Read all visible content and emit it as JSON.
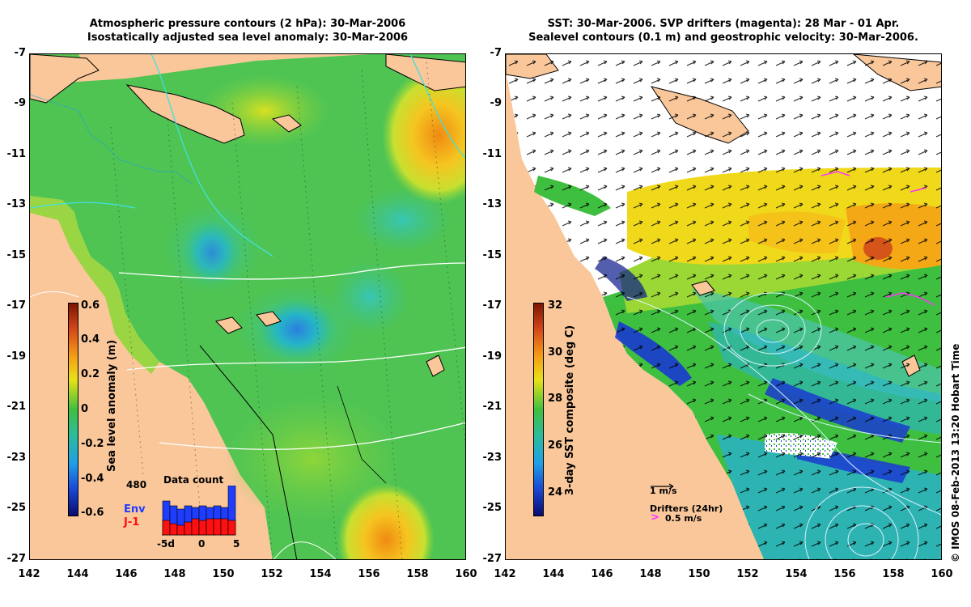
{
  "left_panel": {
    "title_line1": "Atmospheric pressure contours (2 hPa): 30-Mar-2006",
    "title_line2": "Isostatically adjusted sea level anomaly: 30-Mar-2006",
    "colorbar": {
      "label": "Sea level anomaly (m)",
      "ticks": [
        "0.6",
        "0.4",
        "0.2",
        "0",
        "-0.2",
        "-0.4",
        "-0.6"
      ]
    },
    "data_count": {
      "title": "Data count",
      "max_label": "480",
      "legend_env": "Env",
      "legend_j1": "J-1",
      "x_ticks": [
        "-5d",
        "0",
        "5"
      ],
      "env_color": "#1f3dff",
      "j1_color": "#ff1010"
    }
  },
  "right_panel": {
    "title_line1": "SST: 30-Mar-2006. SVP drifters (magenta): 28 Mar - 01 Apr.",
    "title_line2": "Sealevel contours (0.1 m) and geostrophic velocity: 30-Mar-2006.",
    "colorbar": {
      "label": "3-day SST composite (deg C)",
      "ticks": [
        "32",
        "30",
        "28",
        "26",
        "24"
      ]
    },
    "velocity_scale_label": "1 m/s",
    "drifters_label": "Drifters (24hr)",
    "drifters_scale_label": "0.5 m/s"
  },
  "axes": {
    "y_ticks": [
      "-7",
      "-9",
      "-11",
      "-13",
      "-15",
      "-17",
      "-19",
      "-21",
      "-23",
      "-25",
      "-27"
    ],
    "x_ticks": [
      "142",
      "144",
      "146",
      "148",
      "150",
      "152",
      "154",
      "156",
      "158",
      "160"
    ]
  },
  "copyright": "© IMOS 08-Feb-2013 13:20 Hobart Time",
  "colors": {
    "land": "#fac79b",
    "sea_green": "#3fbf3f",
    "magenta": "#ff33ff"
  }
}
